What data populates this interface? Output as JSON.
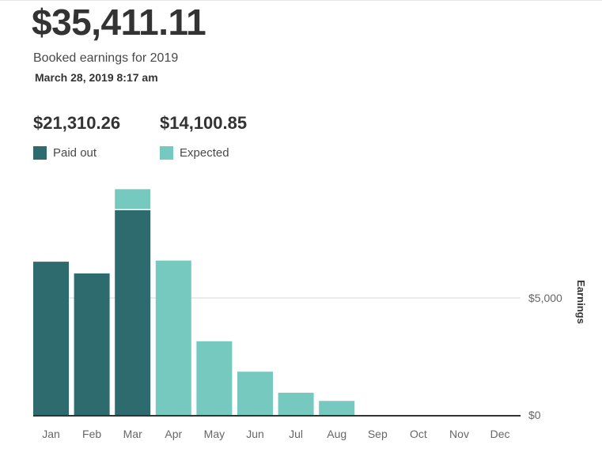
{
  "summary": {
    "total": "$35,411.11",
    "subtitle": "Booked earnings for 2019",
    "timestamp": "March 28, 2019  8:17 am",
    "paid_out_amount": "$21,310.26",
    "expected_amount": "$14,100.85",
    "paid_out_label": "Paid out",
    "expected_label": "Expected"
  },
  "colors": {
    "paid_out": "#2e6b6e",
    "expected": "#76c9bf",
    "gridline": "#d6d6d6",
    "axis": "#333333",
    "tick_text": "#666666"
  },
  "chart_data": {
    "type": "bar",
    "stacked": true,
    "categories": [
      "Jan",
      "Feb",
      "Mar",
      "Apr",
      "May",
      "Jun",
      "Jul",
      "Aug",
      "Sep",
      "Oct",
      "Nov",
      "Dec"
    ],
    "series": [
      {
        "name": "Paid out",
        "values": [
          6550,
          6050,
          8750,
          0,
          0,
          0,
          0,
          0,
          0,
          0,
          0,
          0
        ]
      },
      {
        "name": "Expected",
        "values": [
          0,
          0,
          900,
          6600,
          3150,
          1850,
          950,
          600,
          0,
          0,
          0,
          0
        ]
      }
    ],
    "yticks": [
      {
        "value": 0,
        "label": "$0"
      },
      {
        "value": 5000,
        "label": "$5,000"
      }
    ],
    "ylabel": "Earnings",
    "xlabel": "",
    "ylim": [
      0,
      10000
    ],
    "grid": true,
    "legend": "top-left"
  }
}
